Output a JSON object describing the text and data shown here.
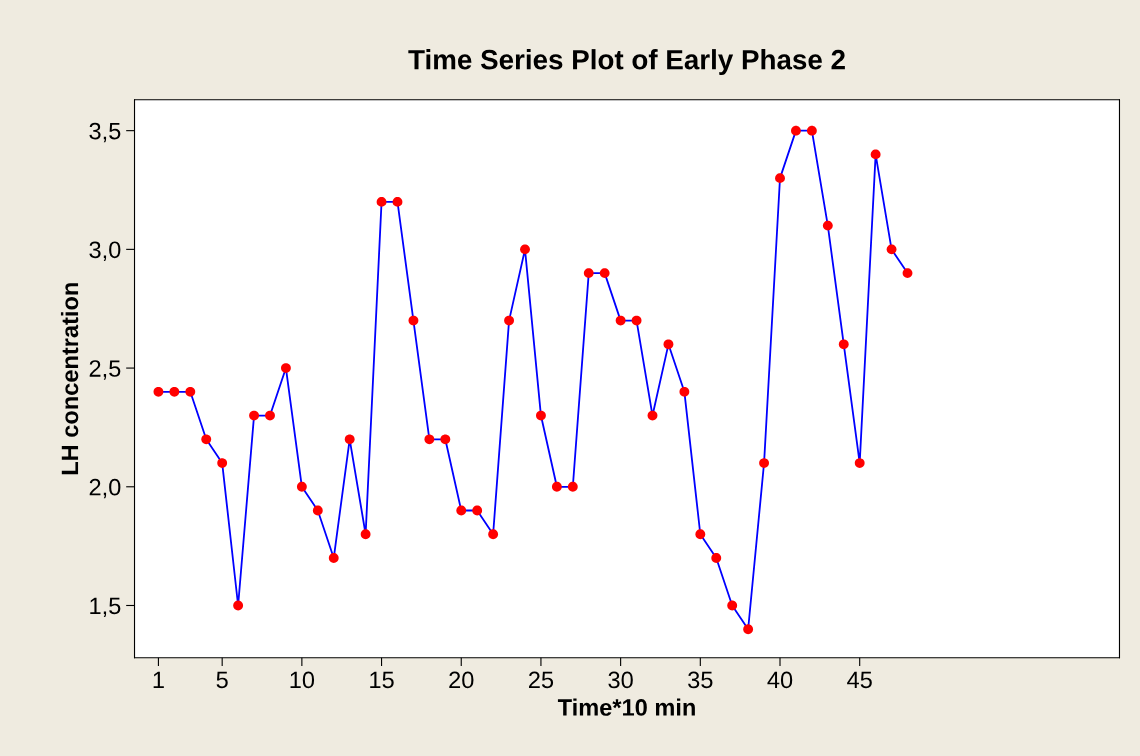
{
  "chart_data": {
    "type": "line",
    "title": "Time Series Plot of Early Phase 2",
    "xlabel": "Time*10 min",
    "ylabel": "LH concentration",
    "x": [
      1,
      2,
      3,
      4,
      5,
      6,
      7,
      8,
      9,
      10,
      11,
      12,
      13,
      14,
      15,
      16,
      17,
      18,
      19,
      20,
      21,
      22,
      23,
      24,
      25,
      26,
      27,
      28,
      29,
      30,
      31,
      32,
      33,
      34,
      35,
      36,
      37,
      38,
      39,
      40,
      41,
      42,
      43,
      44,
      45,
      46,
      47,
      48
    ],
    "series": [
      {
        "color": "#0000ff",
        "colors": [
          "#ff0000",
          "#ff0000",
          "#ff0000",
          "#ff0000",
          "#ff0000",
          "#ff0000",
          "#ff0000",
          "#ff0000",
          "#ff0000",
          "#ff0000",
          "#ff0000",
          "#ff0000",
          "#ff0000",
          "#ff0000",
          "#ff0000",
          "#ff0000",
          "#ff0000",
          "#ff0000",
          "#ff0000",
          "#ff0000",
          "#ff0000",
          "#ff0000",
          "#ff0000",
          "#ff0000",
          "#ff0000",
          "#ff0000",
          "#ff0000",
          "#ff0000",
          "#ff0000",
          "#ff0000",
          "#ff0000",
          "#ff0000",
          "#ff0000",
          "#ff0000",
          "#ff0000",
          "#ff0000",
          "#ff0000",
          "#ff0000",
          "#ff0000",
          "#ff0000",
          "#ff0000",
          "#ff0000",
          "#ff0000",
          "#ff0000",
          "#ff0000",
          "#ff0000",
          "#ff0000",
          "#ff0000"
        ],
        "values": [
          2.4,
          2.4,
          2.4,
          2.2,
          2.1,
          1.5,
          2.3,
          2.3,
          2.5,
          2.0,
          1.9,
          1.7,
          2.2,
          1.8,
          3.2,
          3.2,
          2.7,
          2.2,
          2.2,
          1.9,
          1.9,
          1.8,
          2.7,
          3.0,
          2.3,
          2.0,
          2.0,
          2.9,
          2.9,
          2.7,
          2.7,
          2.3,
          2.6,
          2.4,
          1.8,
          1.7,
          1.5,
          1.4,
          2.1,
          3.3,
          3.5,
          3.5,
          3.1,
          2.6,
          2.1,
          3.4,
          3.0,
          2.9
        ]
      }
    ],
    "xlim": [
      -0.5,
      61.3
    ],
    "xticks": [
      1,
      5,
      10,
      15,
      20,
      25,
      30,
      35,
      40,
      45
    ],
    "ylim": [
      1.28,
      3.63
    ],
    "yticks": [
      {
        "value": 1.5,
        "label": "1,5"
      },
      {
        "value": 2.0,
        "label": "2,0"
      },
      {
        "value": 2.5,
        "label": "2,5"
      },
      {
        "value": 3.0,
        "label": "3,0"
      },
      {
        "value": 3.5,
        "label": "3,5"
      }
    ],
    "marker": "circle",
    "line_style": "solid",
    "grid": false,
    "legend": false
  }
}
